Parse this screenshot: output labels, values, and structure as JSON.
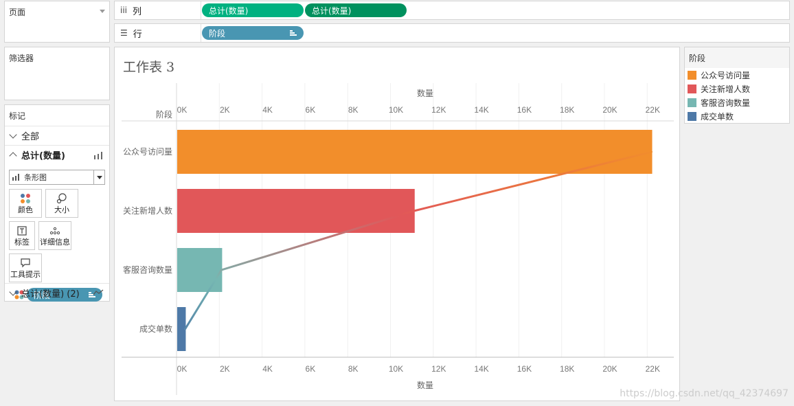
{
  "pages_card": {
    "title": "页面"
  },
  "filters_card": {
    "title": "筛选器"
  },
  "marks_card": {
    "title": "标记",
    "all_label": "全部",
    "section1_label": "总计(数量)",
    "mark_type": "条形图",
    "buttons": {
      "color": "颜色",
      "size": "大小",
      "label": "标签",
      "detail": "详细信息",
      "tooltip": "工具提示"
    },
    "field_pill": "阶段",
    "section2_label": "总计(数量) (2)"
  },
  "columns_shelf": {
    "label": "列",
    "pills": [
      "总计(数量)",
      "总计(数量)"
    ]
  },
  "rows_shelf": {
    "label": "行",
    "pill": "阶段"
  },
  "sheet_title": "工作表 3",
  "legend": {
    "title": "阶段",
    "items": [
      {
        "label": "公众号访问量",
        "color": "#f28e2b"
      },
      {
        "label": "关注新增人数",
        "color": "#e15759"
      },
      {
        "label": "客服咨询数量",
        "color": "#76b7b2"
      },
      {
        "label": "成交单数",
        "color": "#4e79a7"
      }
    ]
  },
  "chart_data": {
    "type": "bar",
    "orientation": "horizontal",
    "row_header": "阶段",
    "xlabel": "数量",
    "xlim": [
      0,
      23000
    ],
    "ticks": [
      0,
      2000,
      4000,
      6000,
      8000,
      10000,
      12000,
      14000,
      16000,
      18000,
      20000,
      22000
    ],
    "tick_labels": [
      "0K",
      "2K",
      "4K",
      "6K",
      "8K",
      "10K",
      "12K",
      "14K",
      "16K",
      "18K",
      "20K",
      "22K"
    ],
    "categories": [
      "公众号访问量",
      "关注新增人数",
      "客服咨询数量",
      "成交单数"
    ],
    "values": [
      22200,
      11100,
      2100,
      400
    ],
    "colors": [
      "#f28e2b",
      "#e15759",
      "#76b7b2",
      "#4e79a7"
    ],
    "overlay_line": {
      "type": "line",
      "values": [
        22200,
        11100,
        2100,
        400
      ]
    },
    "grid": true
  },
  "watermark": "https://blog.csdn.net/qq_42374697"
}
